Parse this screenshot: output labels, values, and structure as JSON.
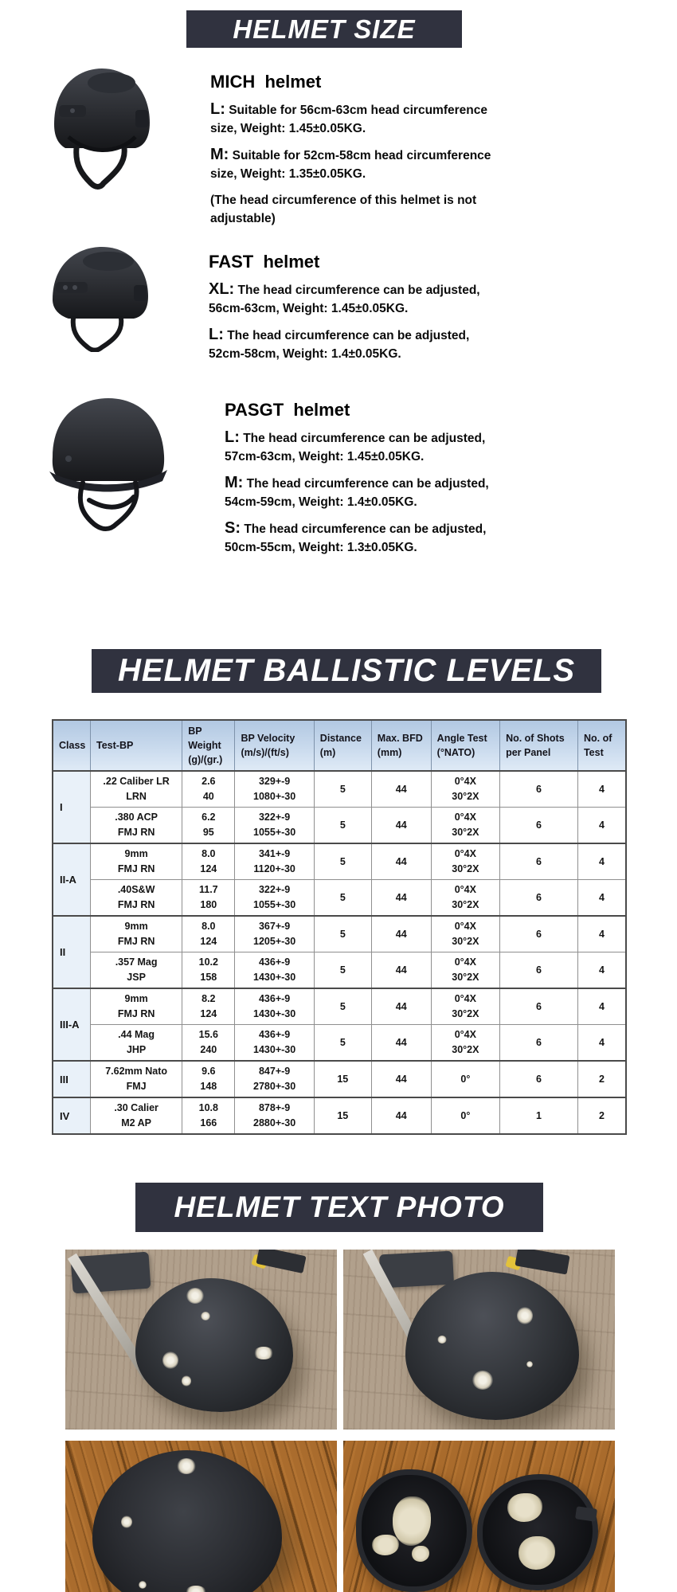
{
  "colors": {
    "section_bar_bg": "#30323f",
    "section_bar_text": "#ffffff",
    "table_header_bg": "#b9cde6",
    "table_class_cell_bg": "#e9f1f9",
    "table_border_dark": "#4a4a4a",
    "table_border_light": "#8f8f8f"
  },
  "section_headers": {
    "size": "HELMET SIZE",
    "ballistic": "HELMET BALLISTIC LEVELS",
    "photo": "HELMET TEXT PHOTO"
  },
  "helmets": [
    {
      "name": "MICH  helmet",
      "specs": [
        {
          "label": "L:",
          "text": "Suitable for 56cm-63cm head circumference size, Weight: 1.45±0.05KG."
        },
        {
          "label": "M:",
          "text": "Suitable for 52cm-58cm head circumference size, Weight: 1.35±0.05KG."
        }
      ],
      "note": "(The head circumference of this helmet is not adjustable)"
    },
    {
      "name": "FAST  helmet",
      "specs": [
        {
          "label": "XL:",
          "text": "The head circumference can be adjusted, 56cm-63cm, Weight: 1.45±0.05KG."
        },
        {
          "label": "L:",
          "text": "The head circumference can be adjusted, 52cm-58cm, Weight: 1.4±0.05KG."
        }
      ],
      "note": ""
    },
    {
      "name": "PASGT  helmet",
      "specs": [
        {
          "label": "L:",
          "text": "The head circumference can be adjusted, 57cm-63cm, Weight: 1.45±0.05KG."
        },
        {
          "label": "M:",
          "text": "The head circumference can be adjusted, 54cm-59cm, Weight: 1.4±0.05KG."
        },
        {
          "label": "S:",
          "text": "The head circumference can be adjusted, 50cm-55cm, Weight: 1.3±0.05KG."
        }
      ],
      "note": ""
    }
  ],
  "table": {
    "columns": [
      [
        "Class"
      ],
      [
        "Test-BP"
      ],
      [
        "BP",
        "Weight",
        "(g)/(gr.)"
      ],
      [
        "BP Velocity",
        "(m/s)/(ft/s)"
      ],
      [
        "Distance",
        "(m)"
      ],
      [
        "Max. BFD",
        "(mm)"
      ],
      [
        "Angle Test",
        "(°NATO)"
      ],
      [
        "No. of Shots",
        "per Panel"
      ],
      [
        "No. of",
        "Test"
      ]
    ],
    "groups": [
      {
        "class": "I",
        "rows": [
          [
            [
              ".22 Caliber LR",
              "LRN"
            ],
            [
              "2.6",
              "40"
            ],
            [
              "329+-9",
              "1080+-30"
            ],
            "5",
            "44",
            [
              "0°4X",
              "30°2X"
            ],
            "6",
            "4"
          ],
          [
            [
              ".380 ACP",
              "FMJ RN"
            ],
            [
              "6.2",
              "95"
            ],
            [
              "322+-9",
              "1055+-30"
            ],
            "5",
            "44",
            [
              "0°4X",
              "30°2X"
            ],
            "6",
            "4"
          ]
        ]
      },
      {
        "class": "II-A",
        "rows": [
          [
            [
              "9mm",
              "FMJ RN"
            ],
            [
              "8.0",
              "124"
            ],
            [
              "341+-9",
              "1120+-30"
            ],
            "5",
            "44",
            [
              "0°4X",
              "30°2X"
            ],
            "6",
            "4"
          ],
          [
            [
              ".40S&W",
              "FMJ RN"
            ],
            [
              "11.7",
              "180"
            ],
            [
              "322+-9",
              "1055+-30"
            ],
            "5",
            "44",
            [
              "0°4X",
              "30°2X"
            ],
            "6",
            "4"
          ]
        ]
      },
      {
        "class": "II",
        "rows": [
          [
            [
              "9mm",
              "FMJ RN"
            ],
            [
              "8.0",
              "124"
            ],
            [
              "367+-9",
              "1205+-30"
            ],
            "5",
            "44",
            [
              "0°4X",
              "30°2X"
            ],
            "6",
            "4"
          ],
          [
            [
              ".357 Mag",
              "JSP"
            ],
            [
              "10.2",
              "158"
            ],
            [
              "436+-9",
              "1430+-30"
            ],
            "5",
            "44",
            [
              "0°4X",
              "30°2X"
            ],
            "6",
            "4"
          ]
        ]
      },
      {
        "class": "III-A",
        "rows": [
          [
            [
              "9mm",
              "FMJ RN"
            ],
            [
              "8.2",
              "124"
            ],
            [
              "436+-9",
              "1430+-30"
            ],
            "5",
            "44",
            [
              "0°4X",
              "30°2X"
            ],
            "6",
            "4"
          ],
          [
            [
              ".44 Mag",
              "JHP"
            ],
            [
              "15.6",
              "240"
            ],
            [
              "436+-9",
              "1430+-30"
            ],
            "5",
            "44",
            [
              "0°4X",
              "30°2X"
            ],
            "6",
            "4"
          ]
        ]
      },
      {
        "class": "III",
        "rows": [
          [
            [
              "7.62mm Nato",
              "FMJ"
            ],
            [
              "9.6",
              "148"
            ],
            [
              "847+-9",
              "2780+-30"
            ],
            "15",
            "44",
            [
              "0°"
            ],
            "6",
            "2"
          ]
        ]
      },
      {
        "class": "IV",
        "rows": [
          [
            [
              ".30 Calier",
              "M2 AP"
            ],
            [
              "10.8",
              "166"
            ],
            [
              "878+-9",
              "2880+-30"
            ],
            "15",
            "44",
            [
              "0°"
            ],
            "1",
            "2"
          ]
        ]
      }
    ]
  }
}
